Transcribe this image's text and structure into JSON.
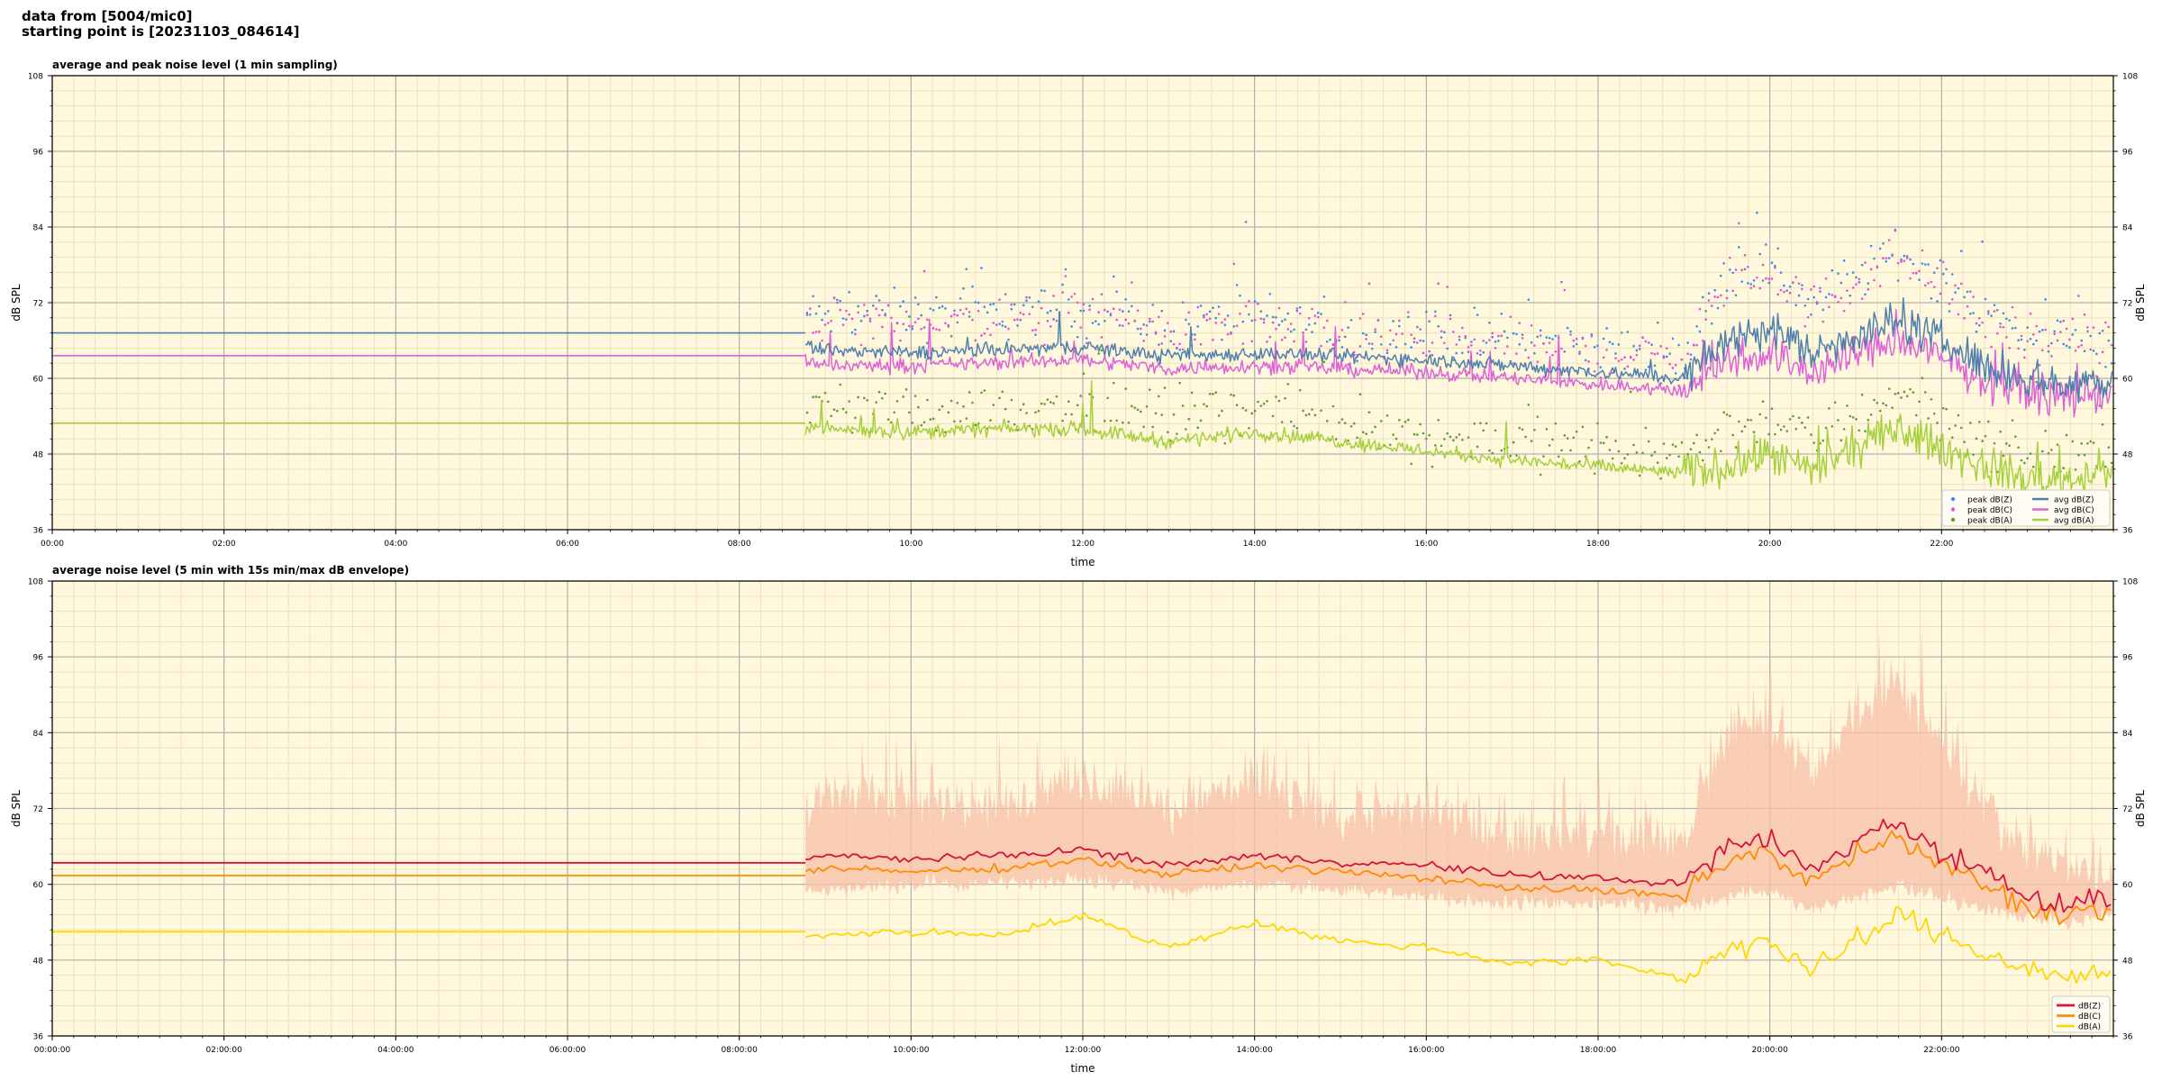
{
  "header": {
    "line1": "data from [5004/mic0]",
    "line2": "starting point is [20231103_084614]"
  },
  "colors": {
    "panel_bg": "#fff8dc",
    "grid_major": "#b0b0b0",
    "grid_minor": "#ece2bf",
    "top_avg_z": "#4f80ad",
    "top_avg_c": "#dd62d8",
    "top_avg_a": "#a6d03c",
    "top_peak_z": "#3a8ee6",
    "top_peak_c": "#e64fd4",
    "top_peak_a": "#5e9a35",
    "bot_z": "#d6123b",
    "bot_c": "#ff8c00",
    "bot_a": "#ffd700",
    "bot_envelope": "#f8c0a8"
  },
  "chart_data": [
    {
      "type": "line",
      "title": "average and peak noise level (1 min sampling)",
      "xlabel": "time",
      "ylabel": "dB SPL",
      "ylim": [
        36,
        108
      ],
      "xlim_hours": [
        0,
        24
      ],
      "yticks": [
        "36",
        "48",
        "60",
        "72",
        "84",
        "96",
        "108"
      ],
      "xticks": [
        "00:00",
        "02:00",
        "04:00",
        "06:00",
        "08:00",
        "10:00",
        "12:00",
        "14:00",
        "16:00",
        "18:00",
        "20:00",
        "22:00"
      ],
      "grid": true,
      "legend_position": "lower-right",
      "legend": [
        "peak dB(Z)",
        "peak dB(C)",
        "peak dB(A)",
        "avg dB(Z)",
        "avg dB(C)",
        "avg dB(A)"
      ],
      "data_start_hour": 8.77,
      "series": [
        {
          "name": "avg dB(Z)",
          "kind": "line",
          "flat_before_start": 67.2,
          "x": [
            8.77,
            9,
            10,
            11,
            12,
            13,
            14,
            15,
            16,
            17,
            18,
            19,
            19.5,
            20,
            20.5,
            21,
            21.5,
            22,
            22.5,
            23,
            23.5,
            24
          ],
          "y": [
            65,
            64.5,
            64,
            64.5,
            65,
            63.5,
            64,
            63.5,
            63,
            62,
            61,
            60,
            66,
            68,
            64,
            67,
            69,
            66,
            62,
            60,
            59,
            60
          ]
        },
        {
          "name": "avg dB(C)",
          "kind": "line",
          "flat_before_start": 63.6,
          "x": [
            8.77,
            9,
            10,
            11,
            12,
            13,
            14,
            15,
            16,
            17,
            18,
            19,
            19.5,
            20,
            20.5,
            21,
            21.5,
            22,
            22.5,
            23,
            23.5,
            24
          ],
          "y": [
            62.5,
            62,
            62,
            62.5,
            63,
            61.5,
            62,
            61.5,
            61,
            60,
            59,
            58,
            63,
            64,
            61,
            64,
            66,
            63,
            60,
            58,
            57,
            58
          ]
        },
        {
          "name": "avg dB(A)",
          "kind": "line",
          "flat_before_start": 52.9,
          "x": [
            8.77,
            9,
            10,
            11,
            12,
            13,
            14,
            15,
            16,
            17,
            18,
            19,
            19.5,
            20,
            20.5,
            21,
            21.5,
            22,
            22.5,
            23,
            23.5,
            24
          ],
          "y": [
            52.5,
            52,
            51.5,
            52,
            52,
            50,
            51.5,
            50,
            48.5,
            47,
            46,
            45,
            46,
            48,
            45,
            49,
            52,
            49,
            46,
            44,
            44,
            46
          ]
        },
        {
          "name": "peak dB(Z)",
          "kind": "scatter",
          "x": [
            9,
            10,
            11,
            12,
            13,
            14,
            15,
            16,
            17,
            18,
            19,
            19.5,
            20,
            20.5,
            21,
            21.5,
            22,
            22.5,
            23,
            23.5
          ],
          "y": [
            70,
            70,
            70,
            71,
            68,
            70,
            67,
            67,
            66,
            65,
            64,
            76,
            78,
            72,
            76,
            80,
            76,
            70,
            67,
            66
          ]
        },
        {
          "name": "peak dB(C)",
          "kind": "scatter",
          "x": [
            9,
            10,
            11,
            12,
            13,
            14,
            15,
            16,
            17,
            18,
            19,
            19.5,
            20,
            20.5,
            21,
            21.5,
            22,
            22.5,
            23,
            23.5
          ],
          "y": [
            69,
            69,
            69,
            70,
            67,
            69,
            66,
            66,
            65,
            64,
            63,
            75,
            77,
            71,
            75,
            79,
            75,
            69,
            66,
            65
          ]
        },
        {
          "name": "peak dB(A)",
          "kind": "scatter",
          "x": [
            9,
            10,
            11,
            12,
            13,
            14,
            15,
            16,
            17,
            18,
            19,
            19.5,
            20,
            20.5,
            21,
            21.5,
            22,
            22.5,
            23,
            23.5
          ],
          "y": [
            55,
            55,
            55,
            56,
            53,
            55,
            53,
            51,
            50,
            49,
            48,
            52,
            54,
            50,
            54,
            58,
            54,
            50,
            48,
            48
          ]
        }
      ]
    },
    {
      "type": "line",
      "title": "average noise level (5 min with 15s min/max dB envelope)",
      "xlabel": "time",
      "ylabel": "dB SPL",
      "ylim": [
        36,
        108
      ],
      "xlim_hours": [
        0,
        24
      ],
      "yticks": [
        "36",
        "48",
        "60",
        "72",
        "84",
        "96",
        "108"
      ],
      "xticks": [
        "00:00:00",
        "02:00:00",
        "04:00:00",
        "06:00:00",
        "08:00:00",
        "10:00:00",
        "12:00:00",
        "14:00:00",
        "16:00:00",
        "18:00:00",
        "20:00:00",
        "22:00:00"
      ],
      "grid": true,
      "legend_position": "lower-right",
      "legend": [
        "dB(Z)",
        "dB(C)",
        "dB(A)"
      ],
      "data_start_hour": 8.77,
      "series": [
        {
          "name": "dB(Z)",
          "kind": "line",
          "flat_before_start": 63.4,
          "x": [
            8.77,
            9,
            10,
            11,
            12,
            13,
            14,
            15,
            16,
            17,
            18,
            19,
            19.5,
            20,
            20.5,
            21,
            21.5,
            22,
            22.5,
            23,
            23.5,
            24
          ],
          "y": [
            64,
            64.5,
            64,
            64.5,
            65.5,
            63,
            64.5,
            63.5,
            63,
            61.5,
            61,
            60,
            66,
            67,
            62,
            67,
            70,
            65,
            62,
            58,
            57,
            58
          ]
        },
        {
          "name": "dB(C)",
          "kind": "line",
          "flat_before_start": 61.4,
          "x": [
            8.77,
            9,
            10,
            11,
            12,
            13,
            14,
            15,
            16,
            17,
            18,
            19,
            19.5,
            20,
            20.5,
            21,
            21.5,
            22,
            22.5,
            23,
            23.5,
            24
          ],
          "y": [
            62,
            62.5,
            62,
            62.5,
            64,
            61.5,
            63,
            62,
            61,
            59.5,
            59,
            58,
            64,
            65,
            60,
            65,
            67,
            63,
            60,
            56,
            55.5,
            56
          ]
        },
        {
          "name": "dB(A)",
          "kind": "line",
          "flat_before_start": 52.5,
          "x": [
            8.77,
            9,
            10,
            11,
            12,
            13,
            14,
            15,
            16,
            17,
            18,
            19,
            19.5,
            20,
            20.5,
            21,
            21.5,
            22,
            22.5,
            23,
            23.5,
            24
          ],
          "y": [
            52,
            52,
            52.5,
            52,
            55,
            50,
            54,
            51,
            50,
            47.5,
            48,
            45,
            50,
            51,
            46,
            51,
            55,
            52,
            49,
            47,
            45,
            47
          ]
        },
        {
          "name": "envelope",
          "kind": "band",
          "x": [
            8.77,
            9,
            10,
            11,
            12,
            13,
            14,
            15,
            16,
            17,
            18,
            19,
            19.5,
            20,
            20.5,
            21,
            21.5,
            22,
            22.5,
            23,
            23.5,
            24
          ],
          "y_max": [
            73,
            75,
            74,
            73,
            77,
            72,
            76,
            71,
            72,
            68,
            68,
            67,
            84,
            86,
            76,
            88,
            92,
            82,
            72,
            66,
            63,
            62
          ],
          "y_min": [
            59,
            59,
            60,
            60,
            61,
            59,
            60,
            59,
            58,
            57,
            57,
            56,
            58,
            59,
            56,
            58,
            60,
            58,
            56,
            55,
            54,
            55
          ]
        }
      ]
    }
  ]
}
